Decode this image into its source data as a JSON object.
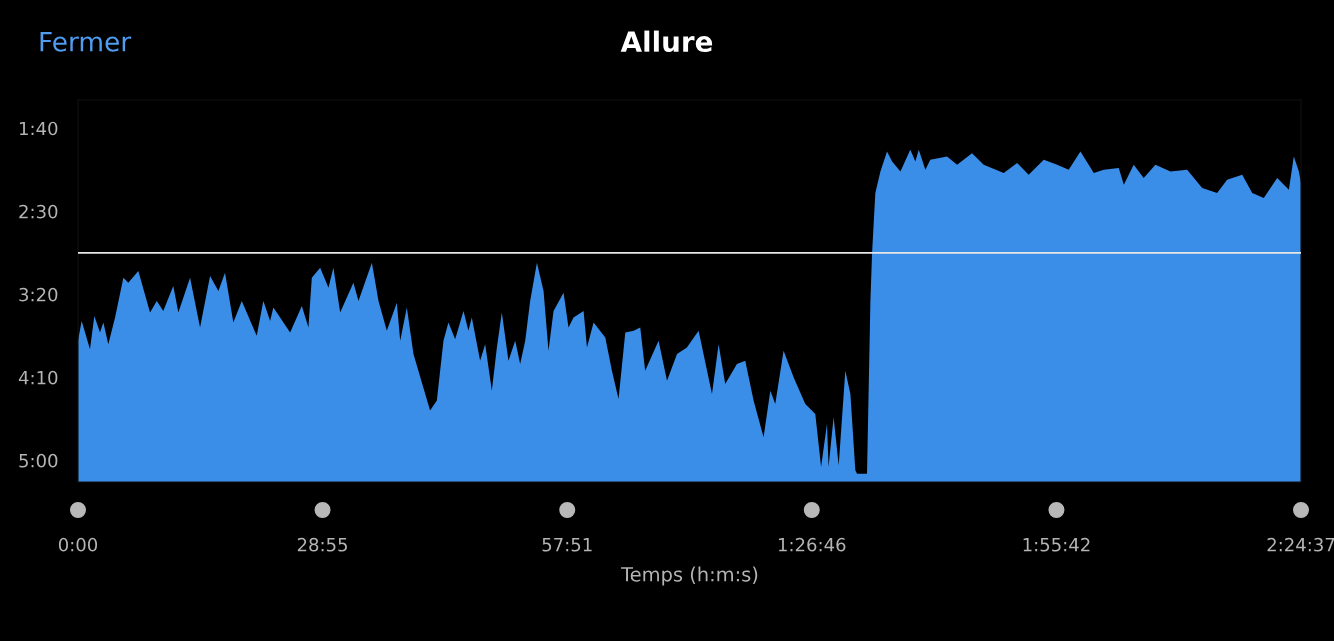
{
  "chart_data": {
    "type": "area",
    "title": "Allure",
    "xlabel": "Temps (h:m:s)",
    "annotations": [
      "Fermer"
    ],
    "xlim": [
      0,
      8677
    ],
    "ylim": [
      313,
      83
    ],
    "xticks": [
      {
        "value": 0,
        "label": "0:00"
      },
      {
        "value": 1735,
        "label": "28:55"
      },
      {
        "value": 3471,
        "label": "57:51"
      },
      {
        "value": 5206,
        "label": "1:26:46"
      },
      {
        "value": 6942,
        "label": "1:55:42"
      },
      {
        "value": 8677,
        "label": "2:24:37"
      }
    ],
    "yticks": [
      {
        "value": 100,
        "label": "1:40"
      },
      {
        "value": 150,
        "label": "2:30"
      },
      {
        "value": 200,
        "label": "3:20"
      },
      {
        "value": 250,
        "label": "4:10"
      },
      {
        "value": 300,
        "label": "5:00"
      }
    ],
    "grid": false,
    "ref_lines": [
      {
        "axis": "y",
        "value": 175,
        "color": "#e6e6e6"
      }
    ],
    "series": [
      {
        "color": "#3b8ee8",
        "x": [
          0,
          26,
          85,
          116,
          156,
          180,
          215,
          263,
          322,
          357,
          428,
          488,
          511,
          559,
          605,
          676,
          712,
          795,
          866,
          937,
          996,
          1043,
          1102,
          1162,
          1268,
          1315,
          1363,
          1386,
          1505,
          1588,
          1635,
          1659,
          1718,
          1777,
          1812,
          1860,
          1954,
          1990,
          2085,
          2132,
          2191,
          2262,
          2286,
          2333,
          2380,
          2498,
          2546,
          2593,
          2628,
          2676,
          2735,
          2770,
          2794,
          2853,
          2889,
          2936,
          2972,
          3007,
          3054,
          3102,
          3137,
          3173,
          3208,
          3256,
          3303,
          3338,
          3374,
          3445,
          3480,
          3516,
          3587,
          3611,
          3658,
          3741,
          3788,
          3835,
          3883,
          3942,
          3989,
          4024,
          4119,
          4179,
          4250,
          4320,
          4403,
          4498,
          4545,
          4592,
          4675,
          4734,
          4793,
          4864,
          4912,
          4947,
          5006,
          5077,
          5160,
          5231,
          5272,
          5314,
          5325,
          5361,
          5397,
          5444,
          5480,
          5515,
          5527,
          5598,
          5622,
          5634,
          5657,
          5693,
          5740,
          5776,
          5835,
          5905,
          5941,
          5965,
          6012,
          6047,
          6166,
          6237,
          6343,
          6426,
          6568,
          6663,
          6745,
          6852,
          6947,
          7029,
          7112,
          7207,
          7278,
          7384,
          7420,
          7490,
          7561,
          7644,
          7751,
          7869,
          7976,
          8082,
          8153,
          8260,
          8331,
          8413,
          8508,
          8591,
          8626,
          8662,
          8677
        ],
        "values": [
          228,
          216,
          233,
          213,
          223,
          217,
          230,
          214,
          190,
          193,
          186,
          204,
          211,
          204,
          210,
          195,
          211,
          190,
          220,
          189,
          198,
          187,
          217,
          204,
          225,
          204,
          216,
          208,
          223,
          207,
          220,
          190,
          184,
          196,
          184,
          211,
          193,
          204,
          181,
          204,
          222,
          205,
          228,
          208,
          236,
          270,
          264,
          228,
          217,
          227,
          210,
          222,
          214,
          240,
          230,
          258,
          232,
          211,
          240,
          228,
          242,
          228,
          204,
          181,
          198,
          234,
          210,
          199,
          220,
          214,
          210,
          232,
          217,
          226,
          246,
          263,
          223,
          222,
          220,
          246,
          228,
          252,
          236,
          232,
          222,
          260,
          230,
          254,
          242,
          240,
          264,
          286,
          258,
          266,
          234,
          250,
          266,
          272,
          304,
          278,
          304,
          274,
          303,
          246,
          260,
          306,
          308,
          308,
          204,
          175,
          139,
          126,
          114,
          120,
          126,
          113,
          120,
          113,
          125,
          119,
          117,
          122,
          115,
          122,
          127,
          121,
          128,
          119,
          122,
          125,
          114,
          127,
          125,
          124,
          134,
          122,
          130,
          122,
          126,
          125,
          136,
          139,
          131,
          128,
          139,
          142,
          130,
          137,
          117,
          126,
          133
        ]
      }
    ]
  }
}
